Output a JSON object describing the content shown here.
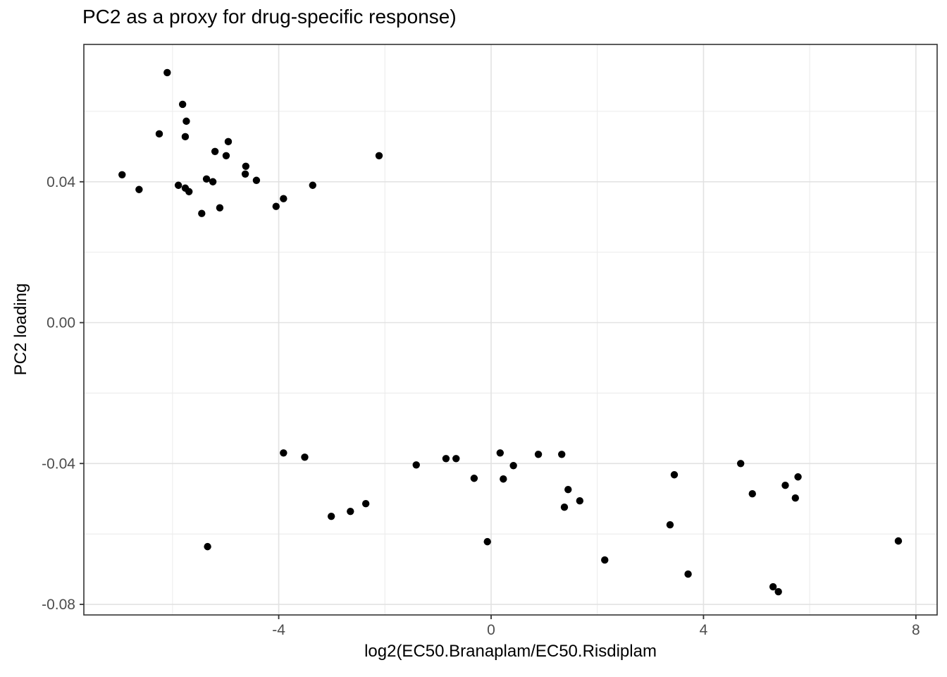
{
  "title": "PC2 as a proxy for drug-specific response)",
  "chart_data": {
    "type": "scatter",
    "title": "PC2 as a proxy for drug-specific response)",
    "xlabel": "log2(EC50.Branaplam/EC50.Risdiplam",
    "ylabel": "PC2 loading",
    "xlim": [
      -7.67,
      8.4
    ],
    "ylim": [
      -0.083,
      0.079
    ],
    "x_major_ticks": [
      -4,
      0,
      4,
      8
    ],
    "x_tick_labels": [
      "-4",
      "0",
      "4",
      "8"
    ],
    "x_minor_ticks": [
      -6,
      -2,
      2,
      6
    ],
    "y_major_ticks": [
      0.04,
      0.0,
      -0.04,
      -0.08
    ],
    "y_tick_labels": [
      "0.04",
      "0.00",
      "-0.04",
      "-0.08"
    ],
    "y_minor_ticks": [
      0.06,
      0.02,
      -0.02,
      -0.06
    ],
    "grid": true,
    "legend": false,
    "point_color": "#000000",
    "point_radius": 5.2,
    "panel_border_color": "#333333",
    "grid_major_color": "#e2e2e2",
    "grid_minor_color": "#ececec",
    "tick_color": "#333333",
    "tick_label_color": "#4d4d4d",
    "points": [
      [
        -6.1,
        0.071
      ],
      [
        -5.81,
        0.062
      ],
      [
        -5.74,
        0.0572
      ],
      [
        -6.25,
        0.0536
      ],
      [
        -5.76,
        0.0528
      ],
      [
        -4.95,
        0.0514
      ],
      [
        -5.2,
        0.0486
      ],
      [
        -4.99,
        0.0474
      ],
      [
        -2.11,
        0.0474
      ],
      [
        -4.62,
        0.0444
      ],
      [
        -4.63,
        0.0422
      ],
      [
        -6.95,
        0.042
      ],
      [
        -5.36,
        0.0408
      ],
      [
        -4.42,
        0.0404
      ],
      [
        -5.24,
        0.04
      ],
      [
        -3.36,
        0.039
      ],
      [
        -5.89,
        0.039
      ],
      [
        -5.76,
        0.0382
      ],
      [
        -6.63,
        0.0378
      ],
      [
        -5.69,
        0.0372
      ],
      [
        -3.91,
        0.0352
      ],
      [
        -4.05,
        0.033
      ],
      [
        -5.11,
        0.0326
      ],
      [
        -5.45,
        0.031
      ],
      [
        -3.91,
        -0.037
      ],
      [
        -3.51,
        -0.0382
      ],
      [
        -3.01,
        -0.055
      ],
      [
        -2.65,
        -0.0536
      ],
      [
        -2.36,
        -0.0514
      ],
      [
        -5.34,
        -0.0636
      ],
      [
        -1.41,
        -0.0404
      ],
      [
        -0.85,
        -0.0386
      ],
      [
        -0.66,
        -0.0386
      ],
      [
        -0.32,
        -0.0442
      ],
      [
        0.17,
        -0.037
      ],
      [
        0.23,
        -0.0444
      ],
      [
        0.42,
        -0.0406
      ],
      [
        0.89,
        -0.0374
      ],
      [
        1.33,
        -0.0374
      ],
      [
        1.45,
        -0.0474
      ],
      [
        1.38,
        -0.0524
      ],
      [
        1.67,
        -0.0506
      ],
      [
        -0.07,
        -0.0622
      ],
      [
        2.14,
        -0.0674
      ],
      [
        4.7,
        -0.04
      ],
      [
        3.45,
        -0.0432
      ],
      [
        5.78,
        -0.0438
      ],
      [
        5.54,
        -0.0462
      ],
      [
        4.92,
        -0.0486
      ],
      [
        5.73,
        -0.0498
      ],
      [
        3.37,
        -0.0574
      ],
      [
        3.71,
        -0.0714
      ],
      [
        5.31,
        -0.075
      ],
      [
        5.41,
        -0.0764
      ],
      [
        7.67,
        -0.062
      ]
    ]
  }
}
